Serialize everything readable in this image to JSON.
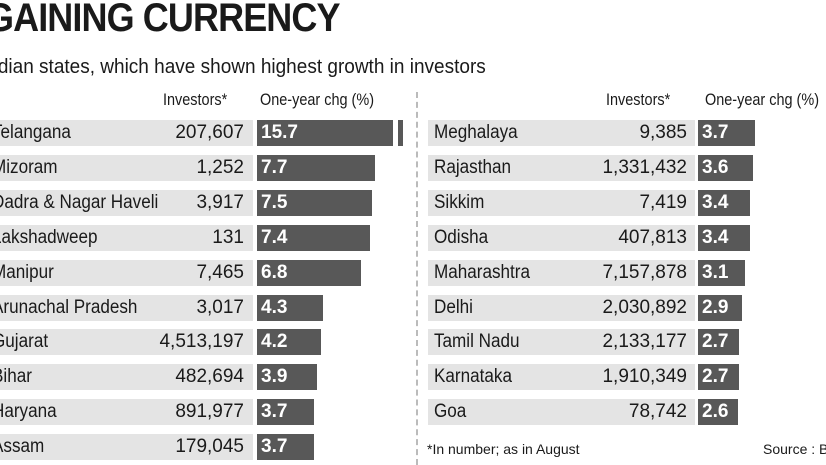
{
  "title": "GAINING CURRENCY",
  "subtitle": "Indian states, which have shown highest growth in investors",
  "colors": {
    "bar": "#585858",
    "band": "#e4e4e4"
  },
  "chart_data": {
    "type": "table",
    "columns": [
      "Investors*",
      "One-year chg (%)"
    ],
    "left": [
      {
        "state": "Telangana",
        "investors": "207,607",
        "chg": 15.7
      },
      {
        "state": "Mizoram",
        "investors": "1,252",
        "chg": 7.7
      },
      {
        "state": "Dadra & Nagar Haveli",
        "investors": "3,917",
        "chg": 7.5
      },
      {
        "state": "Lakshadweep",
        "investors": "131",
        "chg": 7.4
      },
      {
        "state": "Manipur",
        "investors": "7,465",
        "chg": 6.8
      },
      {
        "state": "Arunachal Pradesh",
        "investors": "3,017",
        "chg": 4.3
      },
      {
        "state": "Gujarat",
        "investors": "4,513,197",
        "chg": 4.2
      },
      {
        "state": "Bihar",
        "investors": "482,694",
        "chg": 3.9
      },
      {
        "state": "Haryana",
        "investors": "891,977",
        "chg": 3.7
      },
      {
        "state": "Assam",
        "investors": "179,045",
        "chg": 3.7
      }
    ],
    "right": [
      {
        "state": "Meghalaya",
        "investors": "9,385",
        "chg": 3.7
      },
      {
        "state": "Rajasthan",
        "investors": "1,331,432",
        "chg": 3.6
      },
      {
        "state": "Sikkim",
        "investors": "7,419",
        "chg": 3.4
      },
      {
        "state": "Odisha",
        "investors": "407,813",
        "chg": 3.4
      },
      {
        "state": "Maharashtra",
        "investors": "7,157,878",
        "chg": 3.1
      },
      {
        "state": "Delhi",
        "investors": "2,030,892",
        "chg": 2.9
      },
      {
        "state": "Tamil Nadu",
        "investors": "2,133,177",
        "chg": 2.7
      },
      {
        "state": "Karnataka",
        "investors": "1,910,349",
        "chg": 2.7
      },
      {
        "state": "Goa",
        "investors": "78,742",
        "chg": 2.6
      }
    ]
  },
  "footnote": "*In number;  as in August",
  "source": "Source : B"
}
